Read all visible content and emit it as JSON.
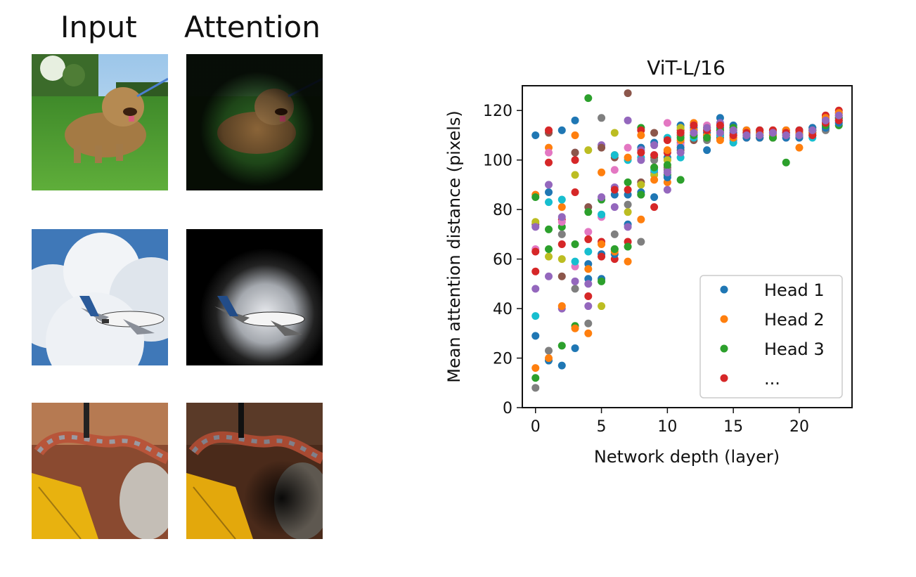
{
  "figure": {
    "column_titles": {
      "input": "Input",
      "attention": "Attention"
    },
    "rows": [
      {
        "subject": "dog on grass"
      },
      {
        "subject": "airplane in clouds"
      },
      {
        "subject": "snake on leaves"
      }
    ]
  },
  "chart_data": {
    "type": "scatter",
    "title": "ViT-L/16",
    "xlabel": "Network depth (layer)",
    "ylabel": "Mean attention distance (pixels)",
    "xlim": [
      -1,
      24
    ],
    "ylim": [
      0,
      130
    ],
    "xticks": [
      0,
      5,
      10,
      15,
      20
    ],
    "yticks": [
      0,
      20,
      40,
      60,
      80,
      100,
      120
    ],
    "legend": {
      "placement": "lower-right",
      "entries": [
        {
          "label": "Head 1",
          "color": "#1f77b4"
        },
        {
          "label": "Head 2",
          "color": "#ff7f0e"
        },
        {
          "label": "Head 3",
          "color": "#2ca02c"
        },
        {
          "label": "...",
          "color": "#d62728"
        }
      ]
    },
    "colors": [
      "#1f77b4",
      "#ff7f0e",
      "#2ca02c",
      "#d62728",
      "#9467bd",
      "#8c564b",
      "#e377c2",
      "#7f7f7f",
      "#bcbd22",
      "#17becf"
    ],
    "layers": [
      {
        "x": 0,
        "values": [
          110,
          86,
          85,
          55,
          48,
          74,
          64,
          8,
          75,
          37,
          29,
          16,
          12,
          63,
          73
        ]
      },
      {
        "x": 1,
        "values": [
          87,
          105,
          72,
          99,
          90,
          111,
          103,
          23,
          61,
          83,
          19,
          20,
          64,
          112,
          53
        ]
      },
      {
        "x": 2,
        "values": [
          112,
          81,
          73,
          76,
          40,
          53,
          75,
          70,
          60,
          84,
          17,
          41,
          25,
          66,
          77
        ]
      },
      {
        "x": 3,
        "values": [
          116,
          110,
          33,
          87,
          103,
          103,
          57,
          48,
          94,
          59,
          24,
          32,
          66,
          100,
          51
        ]
      },
      {
        "x": 4,
        "values": [
          58,
          30,
          125,
          45,
          41,
          81,
          71,
          34,
          104,
          63,
          52,
          56,
          79,
          68,
          50
        ]
      },
      {
        "x": 5,
        "values": [
          62,
          95,
          84,
          67,
          106,
          105,
          77,
          117,
          41,
          78,
          52,
          66,
          51,
          61,
          85
        ]
      },
      {
        "x": 6,
        "values": [
          86,
          102,
          64,
          60,
          89,
          101,
          96,
          70,
          111,
          102,
          62,
          63,
          64,
          88,
          81
        ]
      },
      {
        "x": 7,
        "values": [
          74,
          59,
          91,
          67,
          116,
          127,
          105,
          82,
          79,
          100,
          86,
          101,
          65,
          88,
          73
        ]
      },
      {
        "x": 8,
        "values": [
          105,
          76,
          113,
          112,
          104,
          91,
          86,
          67,
          90,
          101,
          87,
          110,
          86,
          103,
          100
        ]
      },
      {
        "x": 9,
        "values": [
          107,
          97,
          101,
          81,
          95,
          111,
          102,
          100,
          94,
          96,
          85,
          92,
          97,
          102,
          106
        ]
      },
      {
        "x": 10,
        "values": [
          101,
          91,
          94,
          103,
          88,
          97,
          115,
          96,
          100,
          109,
          93,
          104,
          98,
          108,
          95
        ]
      },
      {
        "x": 11,
        "values": [
          114,
          110,
          92,
          112,
          107,
          104,
          106,
          110,
          113,
          101,
          105,
          108,
          109,
          111,
          103
        ]
      },
      {
        "x": 12,
        "values": [
          109,
          115,
          110,
          112,
          114,
          108,
          113,
          111,
          110,
          109,
          113,
          112,
          110,
          114,
          111
        ]
      },
      {
        "x": 13,
        "values": [
          104,
          113,
          111,
          109,
          112,
          110,
          114,
          108,
          113,
          112,
          111,
          110,
          109,
          112,
          113
        ]
      },
      {
        "x": 14,
        "values": [
          117,
          113,
          110,
          112,
          115,
          109,
          114,
          111,
          112,
          110,
          113,
          108,
          112,
          114,
          111
        ]
      },
      {
        "x": 15,
        "values": [
          114,
          110,
          112,
          109,
          108,
          113,
          111,
          110,
          112,
          107,
          111,
          109,
          113,
          110,
          112
        ]
      },
      {
        "x": 16,
        "values": [
          112,
          110,
          111,
          109,
          112,
          110,
          111,
          112,
          110,
          111,
          109,
          112,
          110,
          111,
          110
        ]
      },
      {
        "x": 17,
        "values": [
          111,
          109,
          112,
          110,
          111,
          109,
          110,
          112,
          111,
          110,
          109,
          111,
          110,
          112,
          110
        ]
      },
      {
        "x": 18,
        "values": [
          110,
          112,
          111,
          109,
          112,
          110,
          111,
          109,
          112,
          110,
          111,
          110,
          109,
          112,
          111
        ]
      },
      {
        "x": 19,
        "values": [
          111,
          110,
          99,
          112,
          110,
          111,
          109,
          112,
          110,
          111,
          109,
          112,
          110,
          111,
          110
        ]
      },
      {
        "x": 20,
        "values": [
          112,
          105,
          110,
          111,
          109,
          112,
          110,
          111,
          110,
          112,
          109,
          111,
          110,
          112,
          110
        ]
      },
      {
        "x": 21,
        "values": [
          111,
          112,
          113,
          110,
          112,
          111,
          113,
          112,
          110,
          109,
          113,
          111,
          112,
          110,
          112
        ]
      },
      {
        "x": 22,
        "values": [
          113,
          114,
          116,
          118,
          115,
          117,
          114,
          112,
          115,
          116,
          113,
          117,
          114,
          115,
          116
        ]
      },
      {
        "x": 23,
        "values": [
          117,
          118,
          114,
          120,
          116,
          119,
          115,
          117,
          118,
          116,
          115,
          119,
          117,
          116,
          118
        ]
      }
    ]
  }
}
